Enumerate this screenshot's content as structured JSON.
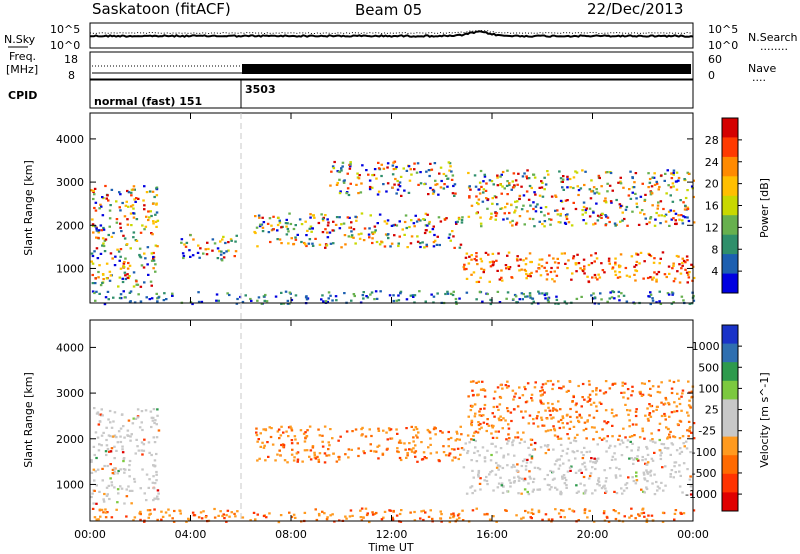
{
  "header": {
    "station": "Saskatoon (fitACF)",
    "beam": "Beam 05",
    "date": "22/Dec/2013"
  },
  "noise_panel": {
    "left_label": "N.Sky",
    "right_label": "N.Search",
    "right_legend": "........",
    "left_ticks": [
      "10^5",
      "10^0"
    ],
    "right_ticks": [
      "10^5",
      "10^0"
    ]
  },
  "freq_panel": {
    "left_label_1": "Freq.",
    "left_label_2": "[MHz]",
    "left_ticks": [
      "18",
      "8"
    ],
    "right_label": "Nave",
    "right_legend": "....",
    "right_ticks": [
      "60",
      "0"
    ]
  },
  "cpid_panel": {
    "label": "CPID",
    "segments": [
      {
        "text": "normal (fast) 151",
        "start_hour": 0,
        "end_hour": 6
      },
      {
        "text": "3503",
        "start_hour": 6,
        "end_hour": 24
      }
    ]
  },
  "chart_data": [
    {
      "type": "heatmap",
      "parameter": "Power",
      "ylabel": "Slant Range [km]",
      "xlabel": "Time UT",
      "y_ticks": [
        1000,
        2000,
        3000,
        4000
      ],
      "ylim": [
        200,
        4600
      ],
      "x_ticks": [
        "00:00",
        "04:00",
        "08:00",
        "12:00",
        "16:00",
        "20:00",
        "00:00"
      ],
      "xlim_hours": [
        0,
        24
      ],
      "colorbar": {
        "label": "Power [dB]",
        "tick_labels": [
          "28",
          "24",
          "20",
          "16",
          "12",
          "8",
          "4"
        ],
        "colors_top_to_bottom": [
          "#d40000",
          "#ff3a00",
          "#ff8a00",
          "#ffbf00",
          "#c8d800",
          "#67b04e",
          "#2f8f6b",
          "#1c5fb0",
          "#0000e0"
        ]
      },
      "echo_regions": [
        {
          "t": [
            0.0,
            2.7
          ],
          "r": [
            600,
            3000
          ],
          "note": "early E/F scatter"
        },
        {
          "t": [
            3.5,
            5.8
          ],
          "r": [
            1200,
            1800
          ]
        },
        {
          "t": [
            6.5,
            14.8
          ],
          "r": [
            1500,
            2300
          ]
        },
        {
          "t": [
            9.5,
            14.5
          ],
          "r": [
            2700,
            3500
          ]
        },
        {
          "t": [
            14.8,
            24.0
          ],
          "r": [
            700,
            1400
          ],
          "note": "strong ~20-30 dB band"
        },
        {
          "t": [
            15.0,
            24.0
          ],
          "r": [
            2000,
            3300
          ]
        },
        {
          "t": [
            0.0,
            24.0
          ],
          "r": [
            200,
            500
          ],
          "note": "ground/near-range scatter"
        }
      ]
    },
    {
      "type": "heatmap",
      "parameter": "Velocity",
      "ylabel": "Slant Range [km]",
      "xlabel": "Time UT",
      "y_ticks": [
        1000,
        2000,
        3000,
        4000
      ],
      "ylim": [
        200,
        4600
      ],
      "x_ticks": [
        "00:00",
        "04:00",
        "08:00",
        "12:00",
        "16:00",
        "20:00",
        "00:00"
      ],
      "xlim_hours": [
        0,
        24
      ],
      "colorbar": {
        "label": "Velocity [m s^-1]",
        "tick_labels": [
          "1000",
          "500",
          "100",
          "25",
          "-25",
          "-100",
          "-500",
          "-1000"
        ],
        "colors_top_to_bottom": [
          "#1a33c8",
          "#2f6fb0",
          "#2e9a4d",
          "#7cc93f",
          "#c8c8c8",
          "#c8c8c8",
          "#ff9a1f",
          "#ff6a00",
          "#ff3300",
          "#e00000"
        ]
      },
      "echo_regions": [
        {
          "t": [
            0.0,
            2.7
          ],
          "r": [
            600,
            2700
          ],
          "note": "grey ground scatter + green/orange"
        },
        {
          "t": [
            6.5,
            14.8
          ],
          "r": [
            1500,
            2300
          ],
          "note": "orange negative velocities"
        },
        {
          "t": [
            14.8,
            24.0
          ],
          "r": [
            800,
            2000
          ],
          "note": "grey ground scatter"
        },
        {
          "t": [
            15.0,
            24.0
          ],
          "r": [
            2000,
            3300
          ],
          "note": "orange/green"
        },
        {
          "t": [
            0.0,
            24.0
          ],
          "r": [
            200,
            500
          ],
          "note": "orange/green near range"
        }
      ]
    }
  ],
  "colors": {
    "axis": "#000000",
    "dashed_divider": "#c8c8c8"
  }
}
